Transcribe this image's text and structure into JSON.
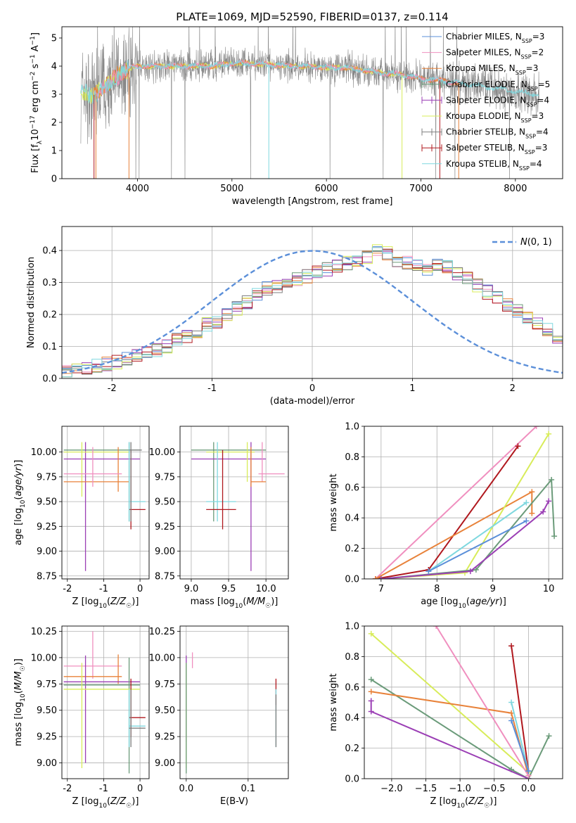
{
  "figure_title": "PLATE=1069, MJD=52590, FIBERID=0137, z=0.114",
  "colors": {
    "Chabrier MILES": "#5b8fd9",
    "Salpeter MILES": "#f08fbf",
    "Kroupa MILES": "#e8823a",
    "Chabrier ELODIE": "#6b9b7a",
    "Salpeter ELODIE": "#9b3fb5",
    "Kroupa ELODIE": "#d8ec5a",
    "Chabrier STELIB": "#7f7f7f",
    "Salpeter STELIB": "#b0181e",
    "Kroupa STELIB": "#7fd8df",
    "data": "#888888",
    "normal_fit": "#5b8fd9"
  },
  "chart_data": [
    {
      "id": "spectrum",
      "type": "line",
      "xlabel": "wavelength [Angstrom, rest frame]",
      "ylabel": "Flux [f_λ10^-17 erg cm^-2 s^-1 A^-1]",
      "xlim": [
        3200,
        8500
      ],
      "ylim": [
        0,
        5.4
      ],
      "xticks": [
        4000,
        5000,
        6000,
        7000,
        8000
      ],
      "yticks": [
        0,
        1,
        2,
        3,
        4,
        5
      ],
      "legend": "top-right",
      "legend_entries": [
        {
          "model": "Chabrier MILES",
          "nssp": 3,
          "style": "line"
        },
        {
          "model": "Salpeter MILES",
          "nssp": 2,
          "style": "line"
        },
        {
          "model": "Kroupa MILES",
          "nssp": 3,
          "style": "line"
        },
        {
          "model": "Chabrier ELODIE",
          "nssp": 5,
          "style": "cross"
        },
        {
          "model": "Salpeter ELODIE",
          "nssp": 4,
          "style": "cross"
        },
        {
          "model": "Kroupa ELODIE",
          "nssp": 3,
          "style": "line"
        },
        {
          "model": "Chabrier STELIB",
          "nssp": 4,
          "style": "cross"
        },
        {
          "model": "Salpeter STELIB",
          "nssp": 3,
          "style": "cross"
        },
        {
          "model": "Kroupa STELIB",
          "nssp": 4,
          "style": "line"
        }
      ],
      "data_series": {
        "name": "data",
        "x": [
          3400,
          3500,
          3600,
          3700,
          3800,
          3900,
          4000,
          4200,
          4400,
          4600,
          4800,
          5000,
          5200,
          5400,
          5600,
          5800,
          6000,
          6200,
          6400,
          6600,
          6800,
          7000,
          7200,
          7400,
          7600,
          7800,
          8000,
          8200
        ],
        "y": [
          3.2,
          2.9,
          3.1,
          3.4,
          3.7,
          3.9,
          4.0,
          4.0,
          4.0,
          4.0,
          4.0,
          4.1,
          4.1,
          4.05,
          4.0,
          4.0,
          3.95,
          3.95,
          3.85,
          3.75,
          3.7,
          3.55,
          3.5,
          3.4,
          3.3,
          3.2,
          3.1,
          3.0
        ]
      }
    },
    {
      "id": "residuals",
      "type": "step",
      "xlabel": "(data-model)/error",
      "ylabel": "Normed distribution",
      "xlim": [
        -2.5,
        2.5
      ],
      "ylim": [
        0,
        0.475
      ],
      "xticks": [
        -2,
        -1,
        0,
        1,
        2
      ],
      "yticks": [
        0.0,
        0.1,
        0.2,
        0.3,
        0.4
      ],
      "legend": "top-right",
      "legend_label": "N(0,1)",
      "bin_width": 0.1,
      "bin_start": -2.5,
      "mean_hist": [
        0.02,
        0.025,
        0.03,
        0.04,
        0.045,
        0.05,
        0.06,
        0.07,
        0.08,
        0.09,
        0.1,
        0.12,
        0.13,
        0.15,
        0.17,
        0.18,
        0.2,
        0.22,
        0.24,
        0.26,
        0.28,
        0.29,
        0.3,
        0.31,
        0.32,
        0.33,
        0.34,
        0.35,
        0.36,
        0.37,
        0.38,
        0.4,
        0.39,
        0.36,
        0.36,
        0.35,
        0.34,
        0.36,
        0.35,
        0.33,
        0.31,
        0.29,
        0.27,
        0.25,
        0.23,
        0.21,
        0.19,
        0.17,
        0.15,
        0.13,
        0.11,
        0.1,
        0.085,
        0.075,
        0.065,
        0.06,
        0.05,
        0.04,
        0.035,
        0.03,
        0.025
      ]
    },
    {
      "id": "age-vs-Z",
      "type": "errorbar",
      "xlabel": "Z [log10(Z/Z☉)]",
      "ylabel": "age  [log10(age/yr)]",
      "xlim": [
        -2.15,
        0.25
      ],
      "ylim": [
        8.72,
        10.26
      ],
      "xticks": [
        -2,
        -1,
        0
      ],
      "yticks": [
        8.75,
        9.0,
        9.25,
        9.5,
        9.75,
        10.0
      ],
      "bars": [
        {
          "model": "Chabrier ELODIE",
          "x": [
            -2.1,
            0.0
          ],
          "y": 10.02,
          "yerr": [
            9.3,
            10.1
          ],
          "xc": -0.3
        },
        {
          "model": "Salpeter ELODIE",
          "x": [
            -2.1,
            0.0
          ],
          "y": 9.93,
          "yerr": [
            8.8,
            10.1
          ],
          "xc": -1.5
        },
        {
          "model": "Kroupa ELODIE",
          "x": [
            -2.1,
            -0.3
          ],
          "y": 10.0,
          "yerr": [
            9.55,
            10.1
          ],
          "xc": -1.6
        },
        {
          "model": "Kroupa MILES",
          "x": [
            -2.1,
            -0.3
          ],
          "y": 9.7,
          "yerr": [
            9.6,
            10.05
          ],
          "xc": -0.6
        },
        {
          "model": "Salpeter MILES",
          "x": [
            -2.1,
            -0.5
          ],
          "y": 9.78,
          "yerr": [
            9.65,
            10.05
          ],
          "xc": -1.3
        },
        {
          "model": "Salpeter STELIB",
          "x": [
            -0.3,
            0.15
          ],
          "y": 9.42,
          "yerr": [
            9.22,
            10.02
          ],
          "xc": -0.25
        },
        {
          "model": "Kroupa STELIB",
          "x": [
            -0.3,
            0.15
          ],
          "y": 9.5,
          "yerr": [
            9.3,
            10.1
          ],
          "xc": -0.3
        },
        {
          "model": "Chabrier STELIB",
          "x": [
            -0.3,
            0.05
          ],
          "y": 10.02,
          "yerr": [
            9.3,
            10.1
          ],
          "xc": -0.25
        }
      ]
    },
    {
      "id": "age-vs-mass",
      "type": "errorbar",
      "xlabel": "mass [log10(M/M☉)]",
      "ylabel": "",
      "xlim": [
        8.85,
        10.3
      ],
      "ylim": [
        8.72,
        10.26
      ],
      "xticks": [
        9.0,
        9.5,
        10.0
      ],
      "yticks": [
        8.75,
        9.0,
        9.25,
        9.5,
        9.75,
        10.0
      ],
      "bars": [
        {
          "model": "Chabrier ELODIE",
          "x": [
            9.0,
            10.0
          ],
          "y": 10.02,
          "yerr": [
            9.3,
            10.1
          ],
          "xc": 9.3
        },
        {
          "model": "Salpeter ELODIE",
          "x": [
            9.0,
            10.0
          ],
          "y": 9.93,
          "yerr": [
            8.8,
            10.1
          ],
          "xc": 9.8
        },
        {
          "model": "Kroupa ELODIE",
          "x": [
            9.2,
            9.85
          ],
          "y": 10.0,
          "yerr": [
            9.7,
            10.1
          ],
          "xc": 9.75
        },
        {
          "model": "Salpeter MILES",
          "x": [
            9.9,
            10.25
          ],
          "y": 9.78,
          "yerr": [
            9.7,
            10.1
          ],
          "xc": 9.95
        },
        {
          "model": "Kroupa MILES",
          "x": [
            9.8,
            10.0
          ],
          "y": 9.7,
          "yerr": [
            9.65,
            10.05
          ],
          "xc": 9.8
        },
        {
          "model": "Kroupa STELIB",
          "x": [
            9.2,
            9.6
          ],
          "y": 9.5,
          "yerr": [
            9.3,
            10.1
          ],
          "xc": 9.35
        },
        {
          "model": "Salpeter STELIB",
          "x": [
            9.2,
            9.6
          ],
          "y": 9.42,
          "yerr": [
            9.22,
            10.02
          ],
          "xc": 9.42
        }
      ]
    },
    {
      "id": "weight-vs-age",
      "type": "line",
      "xlabel": "age  [log10(age/yr)]",
      "ylabel": "mass weight",
      "xlim": [
        6.7,
        10.25
      ],
      "ylim": [
        0,
        1.0
      ],
      "xticks": [
        7,
        8,
        9,
        10
      ],
      "yticks": [
        0.0,
        0.2,
        0.4,
        0.6,
        0.8,
        1.0
      ],
      "series": [
        {
          "model": "Salpeter MILES",
          "x": [
            6.9,
            9.78
          ],
          "y": [
            0.0,
            1.0
          ]
        },
        {
          "model": "Salpeter STELIB",
          "x": [
            6.9,
            7.85,
            9.45
          ],
          "y": [
            0.0,
            0.06,
            0.87
          ]
        },
        {
          "model": "Kroupa MILES",
          "x": [
            6.9,
            9.7,
            9.7
          ],
          "y": [
            0.0,
            0.57,
            0.43
          ]
        },
        {
          "model": "Kroupa ELODIE",
          "x": [
            7.0,
            8.5,
            10.0
          ],
          "y": [
            0.0,
            0.04,
            0.95
          ]
        },
        {
          "model": "Chabrier ELODIE",
          "x": [
            7.0,
            8.7,
            10.05,
            10.1
          ],
          "y": [
            0.0,
            0.06,
            0.65,
            0.28
          ]
        },
        {
          "model": "Salpeter ELODIE",
          "x": [
            7.0,
            8.6,
            9.9,
            10.0
          ],
          "y": [
            0.0,
            0.05,
            0.44,
            0.51
          ]
        },
        {
          "model": "Kroupa STELIB",
          "x": [
            7.85,
            9.6
          ],
          "y": [
            0.05,
            0.5
          ]
        },
        {
          "model": "Chabrier MILES",
          "x": [
            7.85,
            9.6
          ],
          "y": [
            0.05,
            0.38
          ]
        }
      ]
    },
    {
      "id": "mass-vs-Z",
      "type": "errorbar",
      "xlabel": "Z [log10(Z/Z☉)]",
      "ylabel": "mass [log10(M/M☉)]",
      "xlim": [
        -2.15,
        0.25
      ],
      "ylim": [
        8.85,
        10.3
      ],
      "xticks": [
        -2,
        -1,
        0
      ],
      "yticks": [
        9.0,
        9.25,
        9.5,
        9.75,
        10.0,
        10.25
      ],
      "bars": [
        {
          "model": "Salpeter MILES",
          "x": [
            -2.1,
            -0.5
          ],
          "y": 9.92,
          "yerr": [
            9.8,
            10.25
          ],
          "xc": -1.3
        },
        {
          "model": "Kroupa MILES",
          "x": [
            -2.1,
            -0.5
          ],
          "y": 9.82,
          "yerr": [
            9.75,
            10.03
          ],
          "xc": -0.6
        },
        {
          "model": "Salpeter ELODIE",
          "x": [
            -2.1,
            0.0
          ],
          "y": 9.77,
          "yerr": [
            9.0,
            10.02
          ],
          "xc": -1.5
        },
        {
          "model": "Chabrier ELODIE",
          "x": [
            -2.1,
            0.0
          ],
          "y": 9.74,
          "yerr": [
            8.9,
            10.0
          ],
          "xc": -0.3
        },
        {
          "model": "Kroupa ELODIE",
          "x": [
            -2.1,
            0.0
          ],
          "y": 9.7,
          "yerr": [
            8.95,
            9.95
          ],
          "xc": -1.6
        },
        {
          "model": "Salpeter STELIB",
          "x": [
            -0.3,
            0.15
          ],
          "y": 9.43,
          "yerr": [
            9.25,
            9.8
          ],
          "xc": -0.25
        },
        {
          "model": "Kroupa STELIB",
          "x": [
            -0.3,
            0.15
          ],
          "y": 9.35,
          "yerr": [
            9.15,
            9.7
          ],
          "xc": -0.3
        },
        {
          "model": "Chabrier STELIB",
          "x": [
            -0.3,
            0.15
          ],
          "y": 9.33,
          "yerr": [
            9.15,
            9.7
          ],
          "xc": -0.25
        }
      ]
    },
    {
      "id": "mass-vs-EBV",
      "type": "errorbar",
      "xlabel": "E(B-V)",
      "ylabel": "",
      "xlim": [
        -0.01,
        0.165
      ],
      "ylim": [
        8.85,
        10.3
      ],
      "xticks": [
        0.0,
        0.1
      ],
      "yticks": [
        9.0,
        9.25,
        9.5,
        9.75,
        10.0,
        10.25
      ],
      "bars": [
        {
          "model": "Salpeter ELODIE",
          "x": 0.0,
          "yerr": [
            9.2,
            10.02
          ]
        },
        {
          "model": "Kroupa ELODIE",
          "x": 0.0,
          "yerr": [
            8.95,
            9.95
          ]
        },
        {
          "model": "Chabrier ELODIE",
          "x": 0.0,
          "yerr": [
            8.9,
            9.95
          ]
        },
        {
          "model": "Salpeter MILES",
          "x": 0.01,
          "yerr": [
            9.9,
            10.05
          ]
        },
        {
          "model": "Salpeter STELIB",
          "x": 0.145,
          "yerr": [
            9.55,
            9.8
          ]
        },
        {
          "model": "Kroupa STELIB",
          "x": 0.145,
          "yerr": [
            9.15,
            9.7
          ]
        },
        {
          "model": "Chabrier STELIB",
          "x": 0.145,
          "yerr": [
            9.15,
            9.65
          ]
        }
      ]
    },
    {
      "id": "weight-vs-Z",
      "type": "line",
      "xlabel": "Z [log10(Z/Z☉)]",
      "ylabel": "mass weight",
      "xlim": [
        -2.4,
        0.5
      ],
      "ylim": [
        0,
        1.0
      ],
      "xticks": [
        -2.0,
        -1.5,
        -1.0,
        -0.5,
        0.0
      ],
      "yticks": [
        0.0,
        0.2,
        0.4,
        0.6,
        0.8,
        1.0
      ],
      "series": [
        {
          "model": "Kroupa ELODIE",
          "x": [
            -2.3,
            0.0
          ],
          "y": [
            0.95,
            0.04
          ]
        },
        {
          "model": "Chabrier ELODIE",
          "x": [
            -2.3,
            -0.25,
            0.0,
            0.3
          ],
          "y": [
            0.65,
            0.06,
            0.0,
            0.28
          ]
        },
        {
          "model": "Kroupa MILES",
          "x": [
            -2.3,
            -0.25,
            0.0
          ],
          "y": [
            0.57,
            0.43,
            0.02
          ]
        },
        {
          "model": "Salpeter ELODIE",
          "x": [
            -2.3,
            -2.3,
            0.0
          ],
          "y": [
            0.51,
            0.44,
            0.0
          ]
        },
        {
          "model": "Salpeter MILES",
          "x": [
            -1.35,
            0.0
          ],
          "y": [
            1.0,
            0.02
          ]
        },
        {
          "model": "Salpeter STELIB",
          "x": [
            -0.25,
            0.0
          ],
          "y": [
            0.87,
            0.05
          ]
        },
        {
          "model": "Kroupa STELIB",
          "x": [
            -0.25,
            0.0
          ],
          "y": [
            0.5,
            0.05
          ]
        },
        {
          "model": "Chabrier MILES",
          "x": [
            -0.25,
            0.0
          ],
          "y": [
            0.38,
            0.05
          ]
        }
      ]
    }
  ]
}
